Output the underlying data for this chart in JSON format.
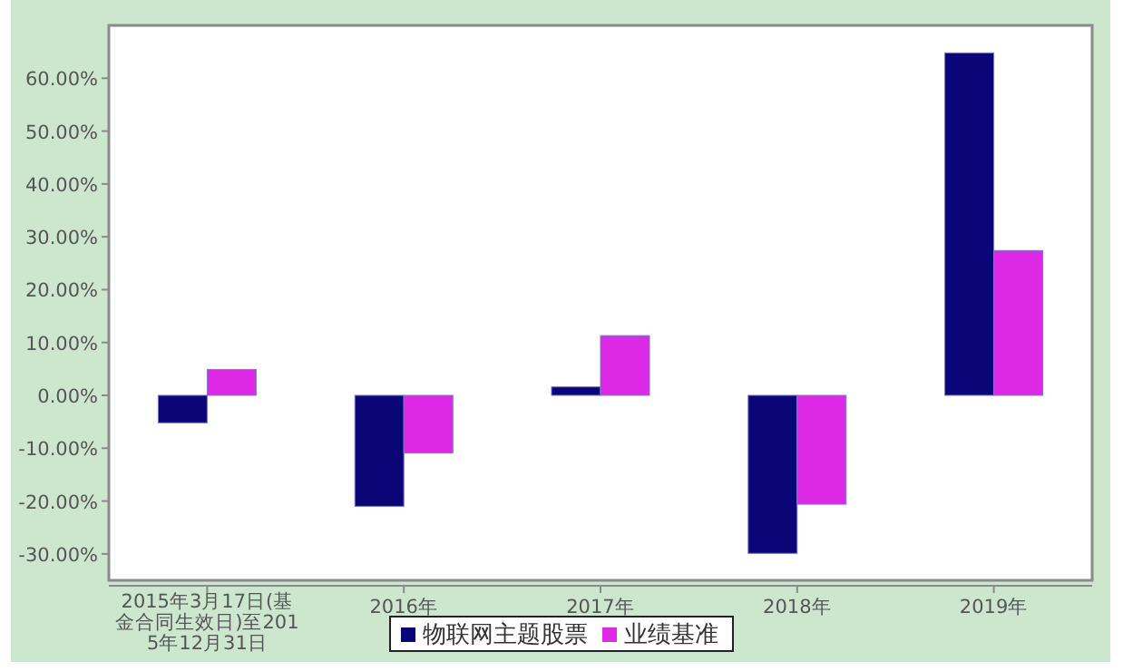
{
  "chart_data": {
    "type": "bar",
    "categories": [
      "2015年3月17日(基金合同生效日)至2015年12月31日",
      "2016年",
      "2017年",
      "2018年",
      "2019年"
    ],
    "series": [
      {
        "name": "物联网主题股票",
        "color": "#0b0677",
        "values": [
          -5.2,
          -21.0,
          1.6,
          -29.9,
          64.8
        ]
      },
      {
        "name": "业绩基准",
        "color": "#dd28e6",
        "values": [
          4.9,
          -10.9,
          11.3,
          -20.6,
          27.4
        ]
      }
    ],
    "ylim": [
      -35,
      70
    ],
    "yticks": [
      {
        "value": -30,
        "label": "-30.00%"
      },
      {
        "value": -20,
        "label": "-20.00%"
      },
      {
        "value": -10,
        "label": "-10.00%"
      },
      {
        "value": 0,
        "label": "0.00%"
      },
      {
        "value": 10,
        "label": "10.00%"
      },
      {
        "value": 20,
        "label": "20.00%"
      },
      {
        "value": 30,
        "label": "30.00%"
      },
      {
        "value": 40,
        "label": "40.00%"
      },
      {
        "value": 50,
        "label": "50.00%"
      },
      {
        "value": 60,
        "label": "60.00%"
      }
    ],
    "grid": false,
    "legend": "bottom"
  }
}
